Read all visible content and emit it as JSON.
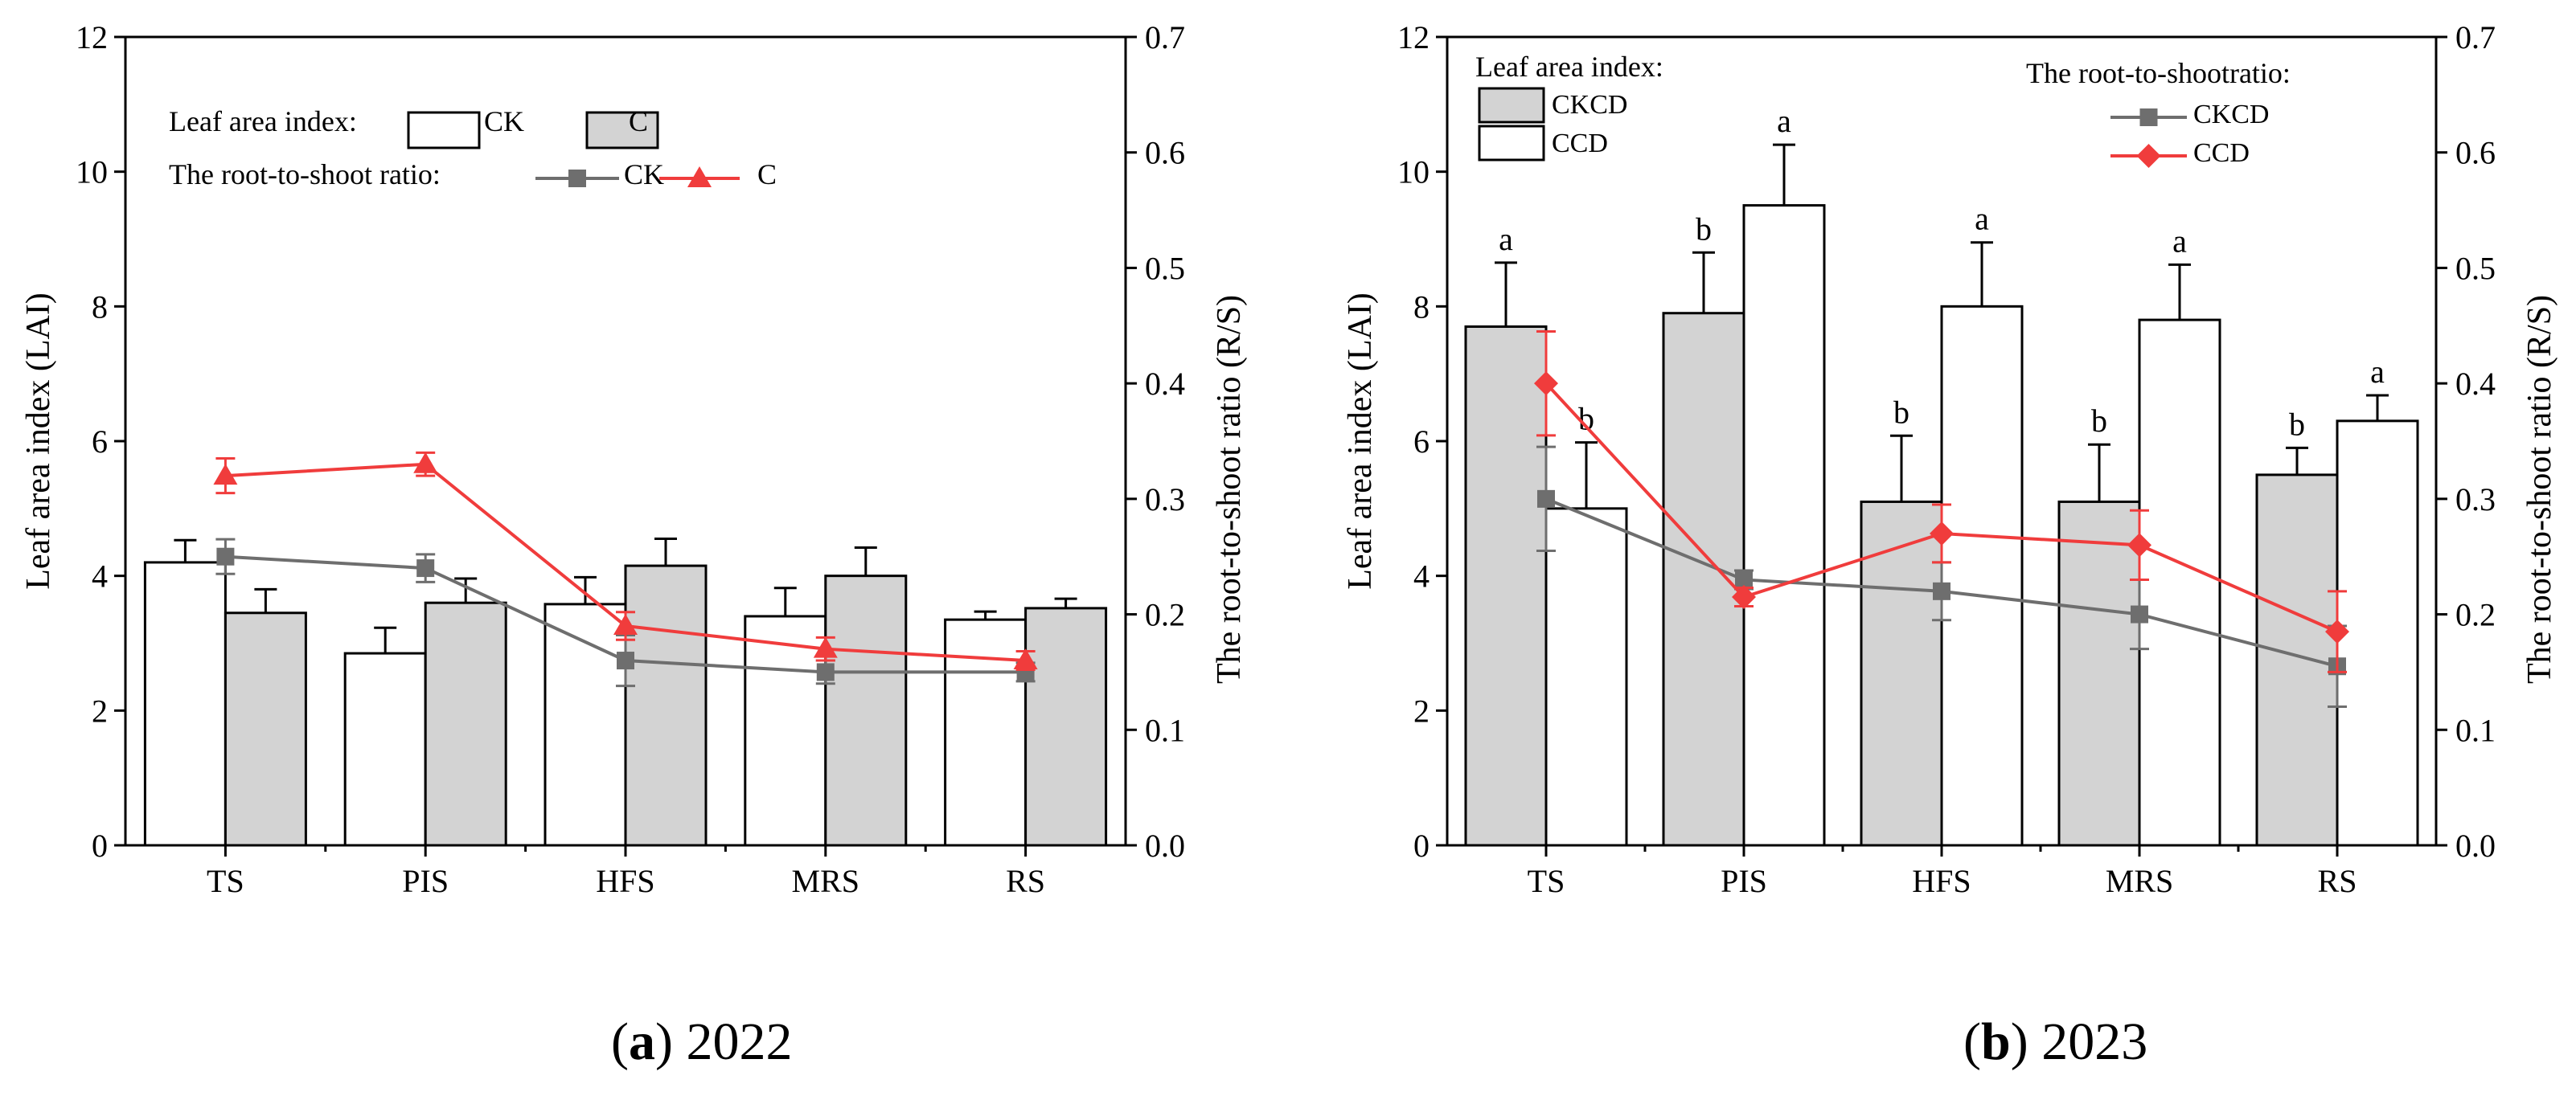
{
  "chart_data": [
    {
      "type": "bar",
      "caption_label": "a",
      "caption_year": "2022",
      "categories": [
        "TS",
        "PIS",
        "HFS",
        "MRS",
        "RS"
      ],
      "ylabel_left": "Leaf area index (LAI)",
      "ylabel_right": "The root-to-shoot ratio (R/S)",
      "ylim_left": [
        0,
        12
      ],
      "ylim_right": [
        0.0,
        0.7
      ],
      "yticks_left": [
        "0",
        "2",
        "4",
        "6",
        "8",
        "10",
        "12"
      ],
      "yticks_right": [
        "0.0",
        "0.1",
        "0.2",
        "0.3",
        "0.4",
        "0.5",
        "0.6",
        "0.7"
      ],
      "legend_bar_title": "Leaf area index:",
      "legend_line_title": "The root-to-shoot ratio:",
      "bar_series": [
        {
          "name": "CK",
          "fill": "#ffffff",
          "values": [
            4.2,
            2.85,
            3.58,
            3.4,
            3.35
          ],
          "errors": [
            0.33,
            0.38,
            0.4,
            0.42,
            0.12
          ]
        },
        {
          "name": "C",
          "fill": "#d3d3d3",
          "values": [
            3.45,
            3.6,
            4.15,
            4.0,
            3.52
          ],
          "errors": [
            0.35,
            0.36,
            0.4,
            0.42,
            0.14
          ]
        }
      ],
      "line_series": [
        {
          "name": "CK",
          "color": "#6e6e6e",
          "marker": "square",
          "values": [
            0.25,
            0.24,
            0.16,
            0.15,
            0.15
          ],
          "errors": [
            0.015,
            0.012,
            0.022,
            0.01,
            0.008
          ]
        },
        {
          "name": "C",
          "color": "#f03c3c",
          "marker": "triangle",
          "values": [
            0.32,
            0.33,
            0.19,
            0.17,
            0.16
          ],
          "errors": [
            0.015,
            0.01,
            0.012,
            0.01,
            0.008
          ]
        }
      ],
      "letters": null
    },
    {
      "type": "bar",
      "caption_label": "b",
      "caption_year": "2023",
      "categories": [
        "TS",
        "PIS",
        "HFS",
        "MRS",
        "RS"
      ],
      "ylabel_left": "Leaf area index (LAI)",
      "ylabel_right": "The root-to-shoot ratio (R/S)",
      "ylim_left": [
        0,
        12
      ],
      "ylim_right": [
        0.0,
        0.7
      ],
      "yticks_left": [
        "0",
        "2",
        "4",
        "6",
        "8",
        "10",
        "12"
      ],
      "yticks_right": [
        "0.0",
        "0.1",
        "0.2",
        "0.3",
        "0.4",
        "0.5",
        "0.6",
        "0.7"
      ],
      "legend_bar_title": "Leaf area index:",
      "legend_line_title": "The root-to-shootratio:",
      "bar_series": [
        {
          "name": "CKCD",
          "fill": "#d3d3d3",
          "values": [
            7.7,
            7.9,
            5.1,
            5.1,
            5.5
          ],
          "errors": [
            0.95,
            0.9,
            0.98,
            0.85,
            0.4
          ],
          "letters": [
            "a",
            "b",
            "b",
            "b",
            "b"
          ]
        },
        {
          "name": "CCD",
          "fill": "#ffffff",
          "values": [
            5.0,
            9.5,
            8.0,
            7.8,
            6.3
          ],
          "errors": [
            0.98,
            0.9,
            0.95,
            0.82,
            0.38
          ],
          "letters": [
            "b",
            "a",
            "a",
            "a",
            "a"
          ]
        }
      ],
      "line_series": [
        {
          "name": "CKCD",
          "color": "#6e6e6e",
          "marker": "square",
          "values": [
            0.3,
            0.23,
            0.22,
            0.2,
            0.155
          ],
          "errors": [
            0.045,
            0.008,
            0.025,
            0.03,
            0.035
          ]
        },
        {
          "name": "CCD",
          "color": "#f03c3c",
          "marker": "diamond",
          "values": [
            0.4,
            0.215,
            0.27,
            0.26,
            0.185
          ],
          "errors": [
            0.045,
            0.008,
            0.025,
            0.03,
            0.035
          ]
        }
      ]
    }
  ]
}
